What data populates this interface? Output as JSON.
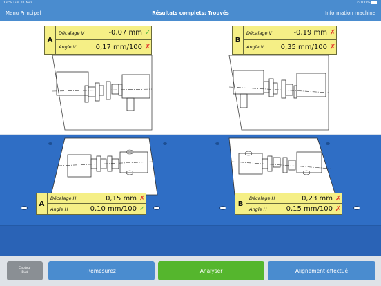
{
  "status": {
    "time_date": "13:58  Lun. 11 févr.",
    "battery": "100 %"
  },
  "nav": {
    "left": "Menu Principal",
    "title": "Résultats complets: Trouvés",
    "right": "Information machine"
  },
  "vertical": {
    "A": {
      "tag": "A",
      "offset_label": "Décalage V",
      "offset_value": "-0,07 mm",
      "offset_status": "ok",
      "angle_label": "Angle V",
      "angle_value": "0,17 mm/100",
      "angle_status": "bad"
    },
    "B": {
      "tag": "B",
      "offset_label": "Décalage V",
      "offset_value": "-0,19 mm",
      "offset_status": "bad",
      "angle_label": "Angle V",
      "angle_value": "0,35 mm/100",
      "angle_status": "bad"
    }
  },
  "horizontal": {
    "A": {
      "tag": "A",
      "offset_label": "Décalage H",
      "offset_value": "0,15 mm",
      "offset_status": "bad",
      "angle_label": "Angle H",
      "angle_value": "0,10 mm/100",
      "angle_status": "ok"
    },
    "B": {
      "tag": "B",
      "offset_label": "Décalage H",
      "offset_value": "0,23 mm",
      "offset_status": "bad",
      "angle_label": "Angle H",
      "angle_value": "0,15 mm/100",
      "angle_status": "bad"
    }
  },
  "toolbar": {
    "sensor_line1": "Capteur",
    "sensor_line2": "Etat",
    "remeasure": "Remesurez",
    "analyze": "Analyser",
    "done": "Alignement effectué"
  },
  "marks": {
    "ok": "✓",
    "bad": "✗"
  }
}
